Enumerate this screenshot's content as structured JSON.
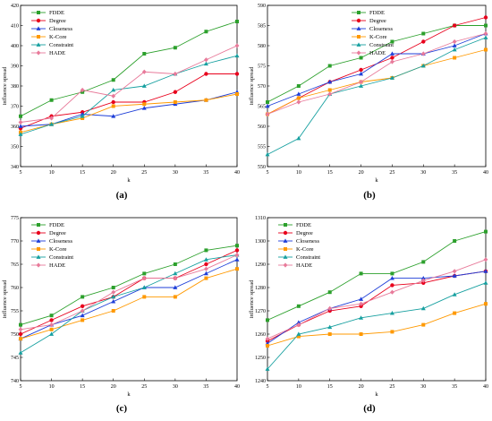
{
  "chart_data": [
    {
      "type": "line",
      "caption": "(a)",
      "xlabel": "k",
      "ylabel": "influence spread",
      "x": [
        5,
        10,
        15,
        20,
        25,
        30,
        35,
        40
      ],
      "xlim": [
        5,
        40
      ],
      "ylim": [
        340,
        420
      ],
      "yticks": [
        340,
        350,
        360,
        370,
        380,
        390,
        400,
        410,
        420
      ],
      "legend_position": "top-left",
      "series": [
        {
          "name": "FDDE",
          "color": "#2ca02c",
          "marker": "square",
          "values": [
            365,
            373,
            377,
            383,
            396,
            399,
            407,
            412
          ]
        },
        {
          "name": "Degree",
          "color": "#e8001c",
          "marker": "circle",
          "values": [
            359,
            365,
            367,
            372,
            372,
            377,
            386,
            386
          ]
        },
        {
          "name": "Closeness",
          "color": "#1f3fd8",
          "marker": "triangle",
          "values": [
            360,
            361,
            366,
            365,
            369,
            371,
            373,
            377
          ]
        },
        {
          "name": "K-Core",
          "color": "#ff9900",
          "marker": "square",
          "values": [
            357,
            361,
            364,
            370,
            371,
            372,
            373,
            376
          ]
        },
        {
          "name": "Constraint",
          "color": "#17a0a0",
          "marker": "triangle",
          "values": [
            356,
            361,
            365,
            378,
            380,
            386,
            391,
            395
          ]
        },
        {
          "name": "HADE",
          "color": "#e87a9a",
          "marker": "diamond",
          "values": [
            362,
            364,
            378,
            375,
            387,
            386,
            393,
            400
          ]
        }
      ]
    },
    {
      "type": "line",
      "caption": "(b)",
      "xlabel": "k",
      "ylabel": "influence spread",
      "x": [
        5,
        10,
        15,
        20,
        25,
        30,
        35,
        40
      ],
      "xlim": [
        5,
        40
      ],
      "ylim": [
        550,
        590
      ],
      "yticks": [
        550,
        555,
        560,
        565,
        570,
        575,
        580,
        585,
        590
      ],
      "legend_position": "top-center",
      "series": [
        {
          "name": "FDDE",
          "color": "#2ca02c",
          "marker": "square",
          "values": [
            566,
            570,
            575,
            577,
            581,
            583,
            585,
            585
          ]
        },
        {
          "name": "Degree",
          "color": "#e8001c",
          "marker": "circle",
          "values": [
            563,
            567,
            571,
            574,
            577,
            581,
            585,
            587
          ]
        },
        {
          "name": "Closeness",
          "color": "#1f3fd8",
          "marker": "triangle",
          "values": [
            565,
            568,
            571,
            573,
            578,
            578,
            580,
            583
          ]
        },
        {
          "name": "K-Core",
          "color": "#ff9900",
          "marker": "square",
          "values": [
            563,
            567,
            569,
            571,
            572,
            575,
            577,
            579
          ]
        },
        {
          "name": "Constraint",
          "color": "#17a0a0",
          "marker": "triangle",
          "values": [
            553,
            557,
            568,
            570,
            572,
            575,
            579,
            582
          ]
        },
        {
          "name": "HADE",
          "color": "#e87a9a",
          "marker": "diamond",
          "values": [
            563,
            566,
            568,
            571,
            576,
            578,
            581,
            583
          ]
        }
      ]
    },
    {
      "type": "line",
      "caption": "(c)",
      "xlabel": "k",
      "ylabel": "influence spread",
      "x": [
        5,
        10,
        15,
        20,
        25,
        30,
        35,
        40
      ],
      "xlim": [
        5,
        40
      ],
      "ylim": [
        740,
        775
      ],
      "yticks": [
        740,
        745,
        750,
        755,
        760,
        765,
        770,
        775
      ],
      "legend_position": "top-left",
      "series": [
        {
          "name": "FDDE",
          "color": "#2ca02c",
          "marker": "square",
          "values": [
            752,
            754,
            758,
            760,
            763,
            765,
            768,
            769
          ]
        },
        {
          "name": "Degree",
          "color": "#e8001c",
          "marker": "circle",
          "values": [
            750,
            753,
            756,
            758,
            762,
            762,
            765,
            768
          ]
        },
        {
          "name": "Closeness",
          "color": "#1f3fd8",
          "marker": "triangle",
          "values": [
            749,
            752,
            754,
            757,
            760,
            760,
            763,
            766
          ]
        },
        {
          "name": "K-Core",
          "color": "#ff9900",
          "marker": "square",
          "values": [
            749,
            751,
            753,
            755,
            758,
            758,
            762,
            764
          ]
        },
        {
          "name": "Constraint",
          "color": "#17a0a0",
          "marker": "triangle",
          "values": [
            746,
            750,
            755,
            758,
            760,
            763,
            766,
            767
          ]
        },
        {
          "name": "HADE",
          "color": "#e87a9a",
          "marker": "diamond",
          "values": [
            751,
            752,
            755,
            759,
            762,
            762,
            764,
            767
          ]
        }
      ]
    },
    {
      "type": "line",
      "caption": "(d)",
      "xlabel": "k",
      "ylabel": "influence spread",
      "x": [
        5,
        10,
        15,
        20,
        25,
        30,
        35,
        40
      ],
      "xlim": [
        5,
        40
      ],
      "ylim": [
        1240,
        1310
      ],
      "yticks": [
        1240,
        1250,
        1260,
        1270,
        1280,
        1290,
        1300,
        1310
      ],
      "legend_position": "top-left",
      "series": [
        {
          "name": "FDDE",
          "color": "#2ca02c",
          "marker": "square",
          "values": [
            1266,
            1272,
            1278,
            1286,
            1286,
            1291,
            1300,
            1304
          ]
        },
        {
          "name": "Degree",
          "color": "#e8001c",
          "marker": "circle",
          "values": [
            1257,
            1264,
            1270,
            1272,
            1281,
            1282,
            1285,
            1287
          ]
        },
        {
          "name": "Closeness",
          "color": "#1f3fd8",
          "marker": "triangle",
          "values": [
            1256,
            1265,
            1271,
            1275,
            1284,
            1284,
            1285,
            1287
          ]
        },
        {
          "name": "K-Core",
          "color": "#ff9900",
          "marker": "square",
          "values": [
            1255,
            1259,
            1260,
            1260,
            1261,
            1264,
            1269,
            1273
          ]
        },
        {
          "name": "Constraint",
          "color": "#17a0a0",
          "marker": "triangle",
          "values": [
            1245,
            1260,
            1263,
            1267,
            1269,
            1271,
            1277,
            1282
          ]
        },
        {
          "name": "HADE",
          "color": "#e87a9a",
          "marker": "diamond",
          "values": [
            1258,
            1264,
            1271,
            1273,
            1278,
            1283,
            1287,
            1292
          ]
        }
      ]
    }
  ]
}
